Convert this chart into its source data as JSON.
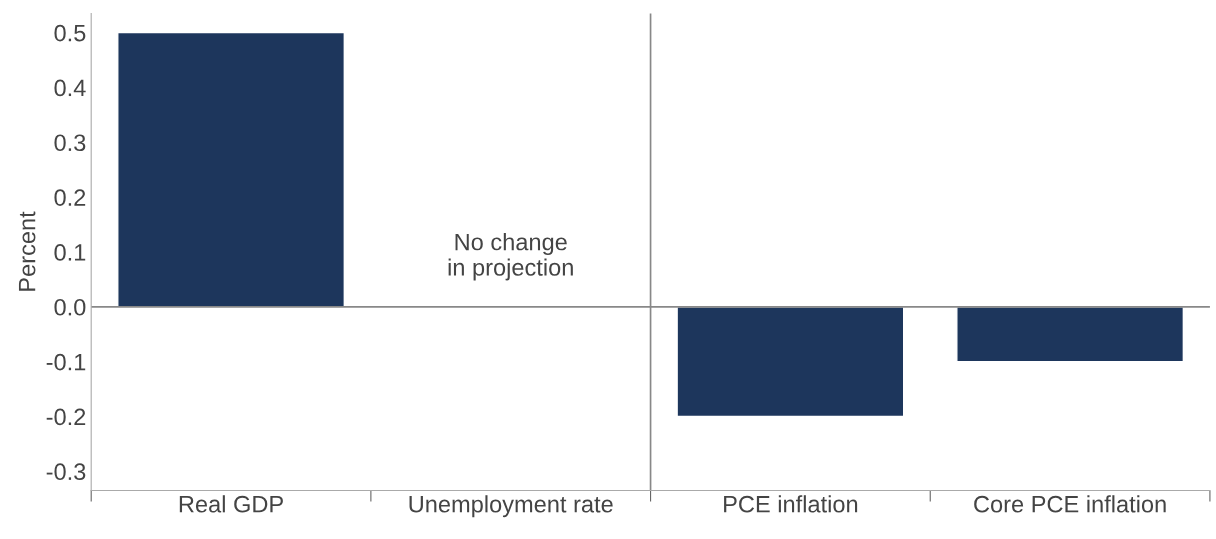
{
  "chart_data": {
    "type": "bar",
    "ylabel": "Percent",
    "categories": [
      "Real GDP",
      "Unemployment rate",
      "PCE inflation",
      "Core PCE inflation"
    ],
    "values": [
      0.5,
      null,
      -0.2,
      -0.1
    ],
    "color": "#1d365c",
    "ylim": [
      -0.335,
      0.535
    ],
    "yticks": [
      -0.3,
      -0.2,
      -0.1,
      {
        "value": 0,
        "label": "0.0"
      },
      0.1,
      0.2,
      0.3,
      0.4,
      0.5
    ],
    "ref_lines": [
      {
        "axis": "y",
        "value": 0,
        "color": "#888888"
      }
    ],
    "annotations": [
      "No change\nin projection"
    ],
    "grid": false,
    "legend": false
  }
}
